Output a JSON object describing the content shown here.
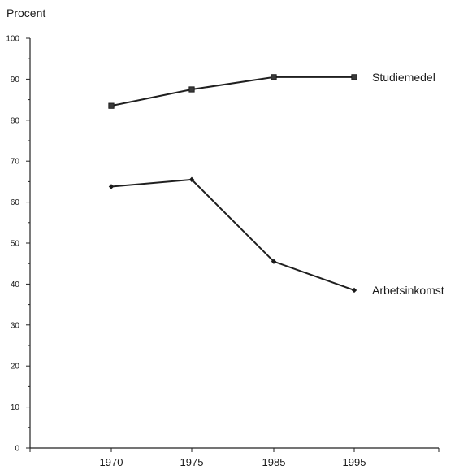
{
  "chart_data": {
    "type": "line",
    "ylabel": "Procent",
    "xlabel": "",
    "ylim": [
      0,
      100
    ],
    "y_ticks": [
      0,
      10,
      20,
      30,
      40,
      50,
      60,
      70,
      80,
      90,
      100
    ],
    "categories": [
      "1970",
      "1975",
      "1985",
      "1995"
    ],
    "grid": false,
    "series": [
      {
        "name": "Studiemedel",
        "marker": "square",
        "values": [
          83.5,
          87.5,
          90.5,
          90.5
        ]
      },
      {
        "name": "Arbetsinkomst",
        "marker": "diamond",
        "values": [
          63.8,
          65.5,
          45.5,
          38.5
        ]
      }
    ]
  }
}
